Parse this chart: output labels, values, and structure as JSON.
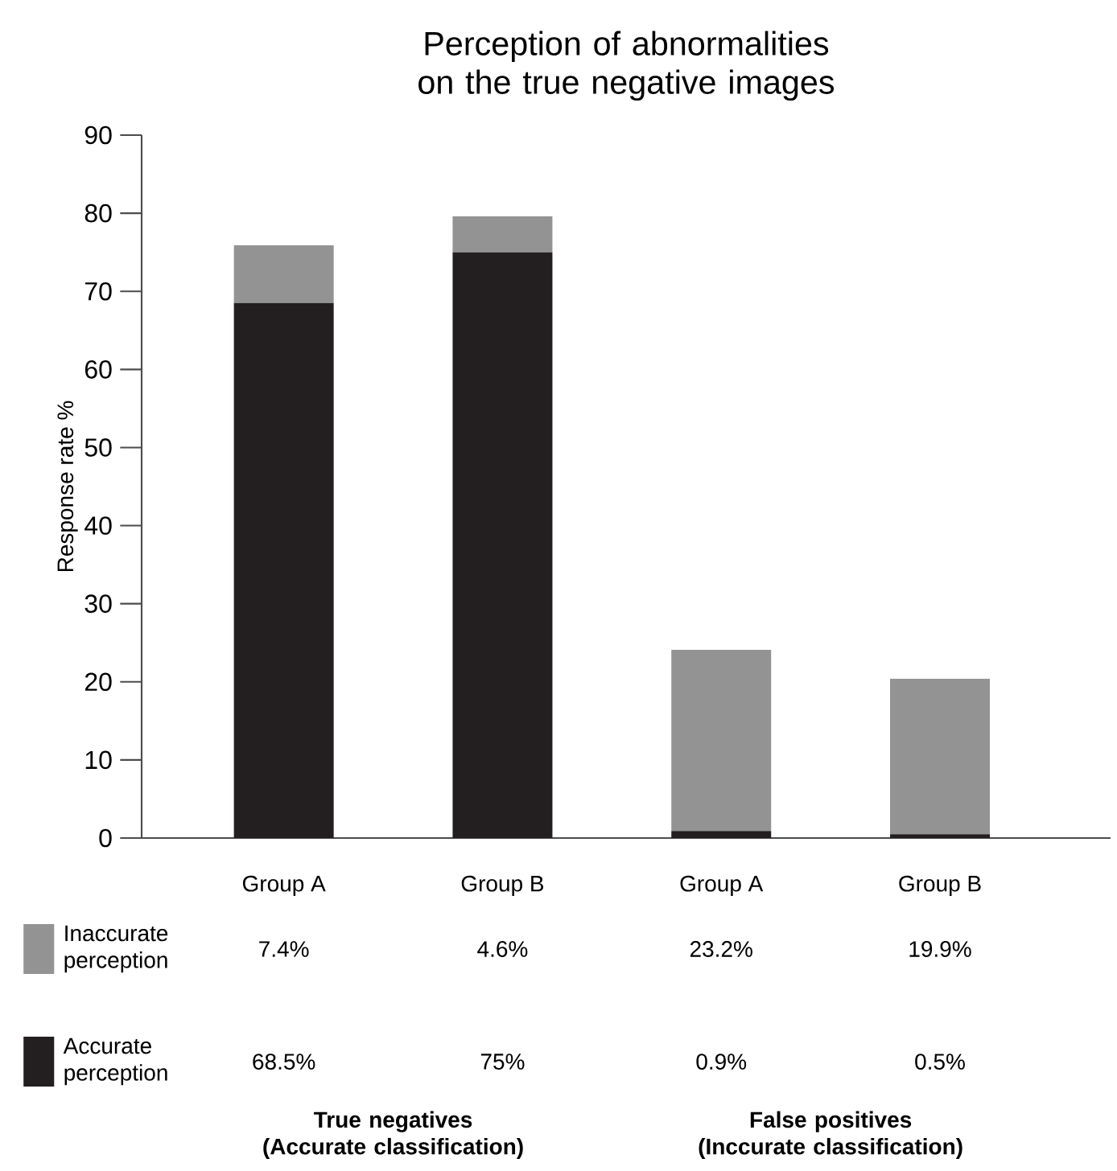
{
  "chart_data": {
    "type": "bar",
    "stacked": true,
    "title": "Perception of abnormalities on the true negative images",
    "ylabel": "Response rate %",
    "categories": [
      "Group A",
      "Group B",
      "Group A",
      "Group B"
    ],
    "series": [
      {
        "name": "Accurate perception",
        "color": "#231f20",
        "values": [
          68.5,
          75,
          0.9,
          0.5
        ],
        "value_labels": [
          "68.5%",
          "75%",
          "0.9%",
          "0.5%"
        ]
      },
      {
        "name": "Inaccurate perception",
        "color": "#939393",
        "values": [
          7.4,
          4.6,
          23.2,
          19.9
        ],
        "value_labels": [
          "7.4%",
          "4.6%",
          "23.2%",
          "19.9%"
        ]
      }
    ],
    "ylim": [
      0,
      90
    ],
    "yticks": [
      0,
      10,
      20,
      30,
      40,
      50,
      60,
      70,
      80,
      90
    ],
    "legend": "bottom left",
    "annotations": [
      {
        "text": "True negatives (Accurate classification)"
      },
      {
        "text": "False positives (Inccurate classification)"
      }
    ]
  }
}
